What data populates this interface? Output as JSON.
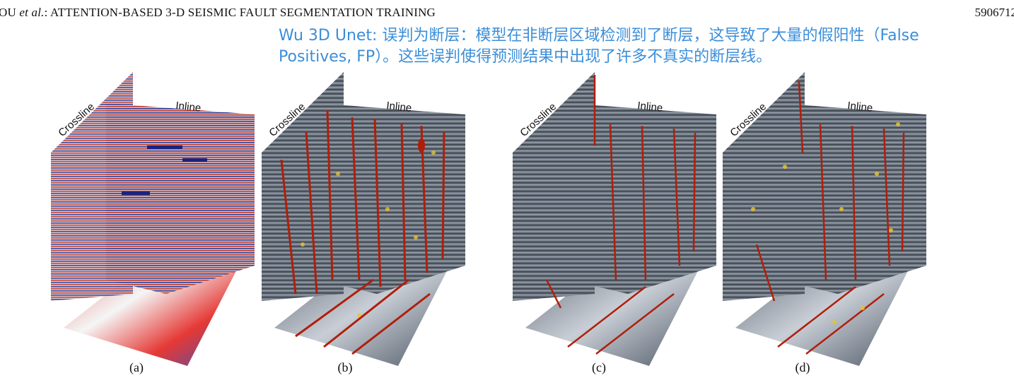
{
  "header": {
    "left_prefix": "OU ",
    "left_italic": "et al.",
    "left_rest": ": ATTENTION-BASED 3-D SEISMIC FAULT SEGMENTATION TRAINING",
    "page_number": "5906712"
  },
  "annotation": {
    "text": "Wu 3D Unet: 误判为断层：模型在非断层区域检测到了断层，这导致了大量的假阳性（False Positives, FP）。这些误判使得预测结果中出现了许多不真实的断层线。"
  },
  "axes": {
    "crossline": "Crossline",
    "inline": "Inline"
  },
  "panels": [
    {
      "id": "a",
      "caption": "(a)",
      "style": "seismic"
    },
    {
      "id": "b",
      "caption": "(b)",
      "style": "faults-dense"
    },
    {
      "id": "c",
      "caption": "(c)",
      "style": "faults-clean"
    },
    {
      "id": "d",
      "caption": "(d)",
      "style": "faults-noisy"
    }
  ],
  "colors": {
    "annotation": "#3b8ed9",
    "seismic_red": "#c0392b",
    "seismic_blue": "#2c3e9a",
    "fault_red": "#b01e0a",
    "fault_yellow": "#e8c32a",
    "gray_background": "#5d6673"
  }
}
